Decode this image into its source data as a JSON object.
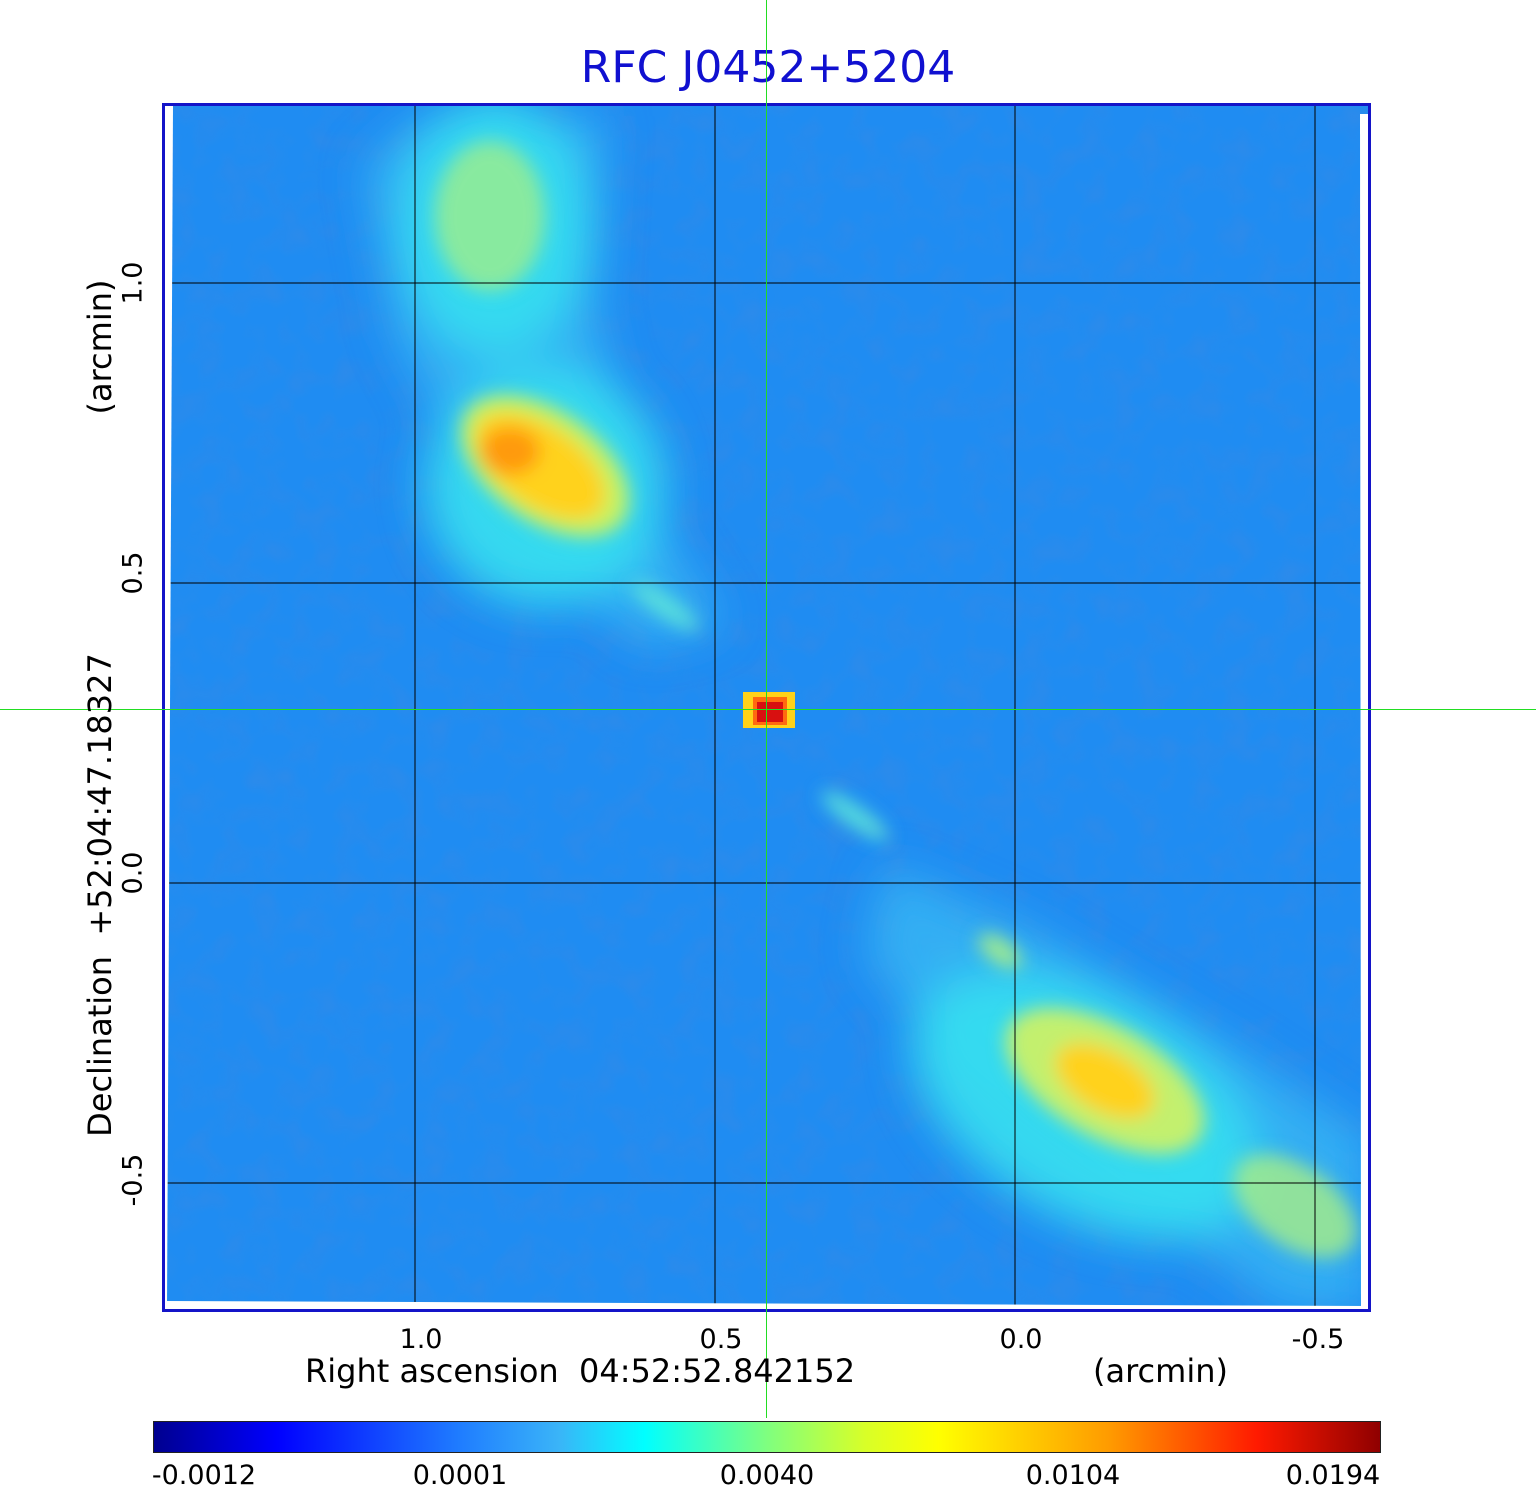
{
  "title": "RFC J0452+5204",
  "x_axis": {
    "label": "Right ascension  04:52:52.842152",
    "unit": "(arcmin)",
    "ticks": [
      "1.0",
      "0.5",
      "0.0",
      "-0.5"
    ]
  },
  "y_axis": {
    "label": "Declination  +52:04:47.18327",
    "unit": "(arcmin)",
    "ticks": [
      "1.0",
      "0.5",
      "0.0",
      "-0.5"
    ]
  },
  "colorbar": {
    "ticks": [
      "-0.0012",
      "0.0001",
      "0.0040",
      "0.0104",
      "0.0194"
    ],
    "colormap": "jet"
  },
  "colors": {
    "title": "#1010d0",
    "frame": "#1414c8",
    "crosshair": "#22dd22",
    "grid": "#000000"
  }
}
